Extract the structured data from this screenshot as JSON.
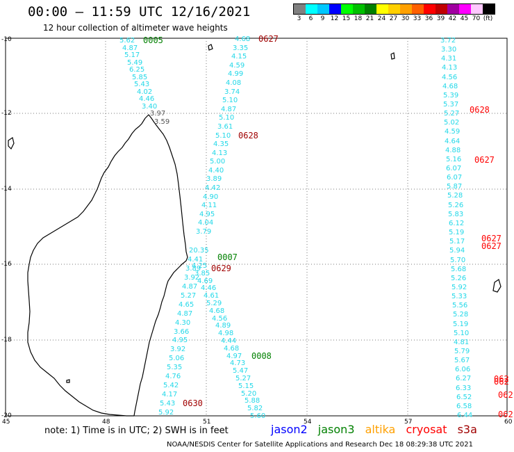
{
  "header": {
    "title": "00:00 — 11:59 UTC 12/16/2021",
    "subtitle": "12 hour collection of altimeter wave heights"
  },
  "legend": {
    "colors": [
      "#808080",
      "#00ffff",
      "#00c8ff",
      "#0000ff",
      "#00ff00",
      "#00c000",
      "#008000",
      "#ffff00",
      "#ffd000",
      "#ffa000",
      "#ff6000",
      "#ff0000",
      "#c00000",
      "#a000a0",
      "#ff00ff",
      "#ffc8ff",
      "#000000"
    ],
    "labels": [
      "3",
      "6",
      "9",
      "12",
      "15",
      "18",
      "21",
      "24",
      "27",
      "30",
      "33",
      "36",
      "39",
      "42",
      "45",
      "70",
      "(ft)"
    ]
  },
  "axes": {
    "y_labels": [
      "-10",
      "-12",
      "-14",
      "-16",
      "-18",
      "-20"
    ],
    "x_labels": [
      "45",
      "48",
      "51",
      "54",
      "57",
      "60"
    ]
  },
  "note": "note: 1) Time is in UTC; 2) SWH is in feet",
  "satellites": [
    {
      "name": "jason2",
      "color": "#0000ff"
    },
    {
      "name": "jason3",
      "color": "#008000"
    },
    {
      "name": "altika",
      "color": "#ffa000"
    },
    {
      "name": "cryosat",
      "color": "#ff0000"
    },
    {
      "name": "s3a",
      "color": "#a00000"
    }
  ],
  "footer": "NOAA/NESDIS Center for Satellite Applications and Research    Dec 18 08:29:38 UTC 2021",
  "track_a": [
    "5.62",
    "4.87",
    "5.17",
    "5.49",
    "6.25",
    "5.85",
    "5.43",
    "4.02",
    "4.46",
    "3.40"
  ],
  "track_a_gray": [
    "3.97",
    "3.59"
  ],
  "track_b": [
    "4.68",
    "3.35",
    "4.15",
    "4.59",
    "4.99",
    "4.08",
    "3.74",
    "5.10",
    "4.87",
    "5.10",
    "3.61",
    "5.10",
    "4.35",
    "4.13",
    "5.00",
    "4.40",
    "3.89",
    "4.42",
    "4.90",
    "4.11",
    "4.95",
    "4.04",
    "3.79"
  ],
  "track_c": [
    "20.35",
    "4.41",
    "3.89",
    "3.92",
    "4.87",
    "5.27",
    "4.65",
    "4.87",
    "4.30",
    "3.66",
    "4.95",
    "3.92",
    "5.06",
    "5.35",
    "4.76",
    "5.42",
    "4.17",
    "5.43",
    "5.92"
  ],
  "track_d": [
    "4.25",
    "3.85",
    "4.69",
    "4.46",
    "4.61",
    "5.29",
    "4.68",
    "4.56",
    "4.89",
    "4.98",
    "4.44",
    "4.68",
    "4.97",
    "4.73",
    "5.47",
    "5.27",
    "5.15",
    "5.20",
    "5.88",
    "5.82",
    "5.60"
  ],
  "track_e": [
    "3.72",
    "3.30",
    "4.31",
    "4.13",
    "4.56",
    "4.68",
    "5.39",
    "5.37",
    "5.27",
    "5.02",
    "4.59",
    "4.64",
    "4.88",
    "5.16",
    "6.07",
    "6.07",
    "5.87",
    "5.28",
    "5.26",
    "5.83",
    "6.12",
    "5.19",
    "5.17",
    "5.94",
    "5.70",
    "5.68",
    "5.26",
    "5.92",
    "5.33",
    "5.56",
    "5.28",
    "5.19",
    "5.10",
    "4.81",
    "5.79",
    "5.67",
    "6.06",
    "6.27",
    "6.33",
    "6.52",
    "6.58",
    "6.44"
  ],
  "passes": {
    "p0005": "0005",
    "p0627a": "0627",
    "p0628a": "0628",
    "p0628b": "0628",
    "p0627b": "0627",
    "p0627c": "0627",
    "p0627d": "0627",
    "p0007": "0007",
    "p0629": "0629",
    "p0008": "0008",
    "p0630": "0630",
    "p062a": "062",
    "p062b": "062",
    "p062c": "062"
  }
}
